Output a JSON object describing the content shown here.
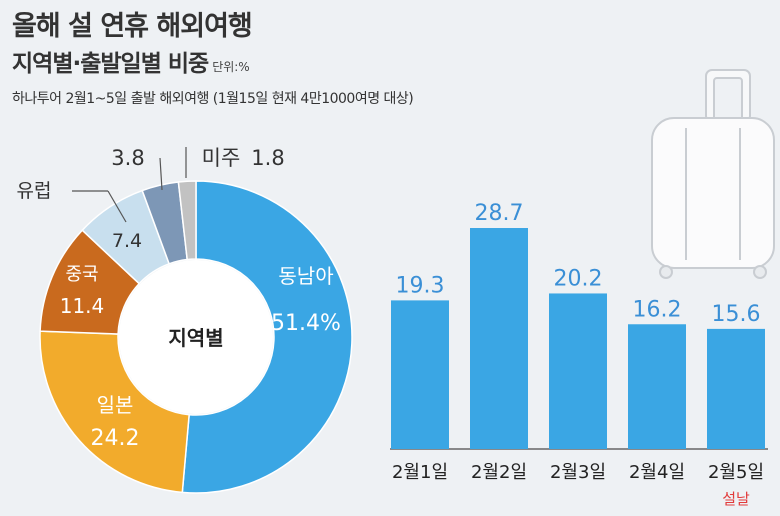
{
  "title": "올해 설 연휴 해외여행",
  "subtitle": "지역별·출발일별 비중",
  "unit": "단위:%",
  "note": "하나투어 2월1~5일 출발 해외여행 (1월15일 현재 4만1000여명 대상)",
  "colors": {
    "background": "#eef1f4",
    "bar": "#3aa6e4",
    "label": "#3a8fd6",
    "highlight": "#e23b3b",
    "southeast_asia": "#3aa6e4",
    "japan": "#f2ab2c",
    "china": "#c96a1e",
    "europe": "#c8dfee",
    "oceania": "#7d97b6",
    "americas": "#c2c2c2"
  },
  "chart_data": [
    {
      "type": "pie",
      "variant": "donut",
      "center_label": "지역별",
      "slices": [
        {
          "label": "동남아",
          "value": 51.4,
          "value_label": "51.4%",
          "color": "#3aa6e4"
        },
        {
          "label": "일본",
          "value": 24.2,
          "value_label": "24.2",
          "color": "#f2ab2c"
        },
        {
          "label": "중국",
          "value": 11.4,
          "value_label": "11.4",
          "color": "#c96a1e"
        },
        {
          "label": "유럽",
          "value": 7.4,
          "value_label": "7.4",
          "color": "#c8dfee"
        },
        {
          "label": "",
          "value": 3.8,
          "value_label": "3.8",
          "color": "#7d97b6"
        },
        {
          "label": "미주",
          "value": 1.8,
          "value_label": "1.8",
          "color": "#c2c2c2"
        }
      ]
    },
    {
      "type": "bar",
      "categories": [
        "2월1일",
        "2월2일",
        "2월3일",
        "2월4일",
        "2월5일"
      ],
      "values": [
        19.3,
        28.7,
        20.2,
        16.2,
        15.6
      ],
      "value_labels": [
        "19.3",
        "28.7",
        "20.2",
        "16.2",
        "15.6"
      ],
      "annotation": {
        "category": "2월5일",
        "text": "설날"
      }
    }
  ]
}
